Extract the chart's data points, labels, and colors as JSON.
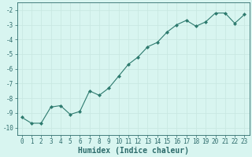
{
  "x": [
    0,
    1,
    2,
    3,
    4,
    5,
    6,
    7,
    8,
    9,
    10,
    11,
    12,
    13,
    14,
    15,
    16,
    17,
    18,
    19,
    20,
    21,
    22,
    23
  ],
  "y": [
    -9.3,
    -9.7,
    -9.7,
    -8.6,
    -8.5,
    -9.1,
    -8.9,
    -7.5,
    -7.8,
    -7.3,
    -6.5,
    -5.7,
    -5.2,
    -4.5,
    -4.2,
    -3.5,
    -3.0,
    -2.7,
    -3.1,
    -2.8,
    -2.2,
    -2.2,
    -2.9,
    -2.3
  ],
  "line_color": "#2d7a6e",
  "marker": "D",
  "markersize": 2.0,
  "linewidth": 0.8,
  "bg_color": "#d8f5f0",
  "grid_color": "#c9e8e2",
  "xlabel": "Humidex (Indice chaleur)",
  "xlim": [
    -0.5,
    23.5
  ],
  "ylim": [
    -10.5,
    -1.5
  ],
  "yticks": [
    -10,
    -9,
    -8,
    -7,
    -6,
    -5,
    -4,
    -3,
    -2
  ],
  "xticks": [
    0,
    1,
    2,
    3,
    4,
    5,
    6,
    7,
    8,
    9,
    10,
    11,
    12,
    13,
    14,
    15,
    16,
    17,
    18,
    19,
    20,
    21,
    22,
    23
  ],
  "font_color": "#2d6b6b",
  "tick_fontsize": 5.5,
  "label_fontsize": 7.0
}
